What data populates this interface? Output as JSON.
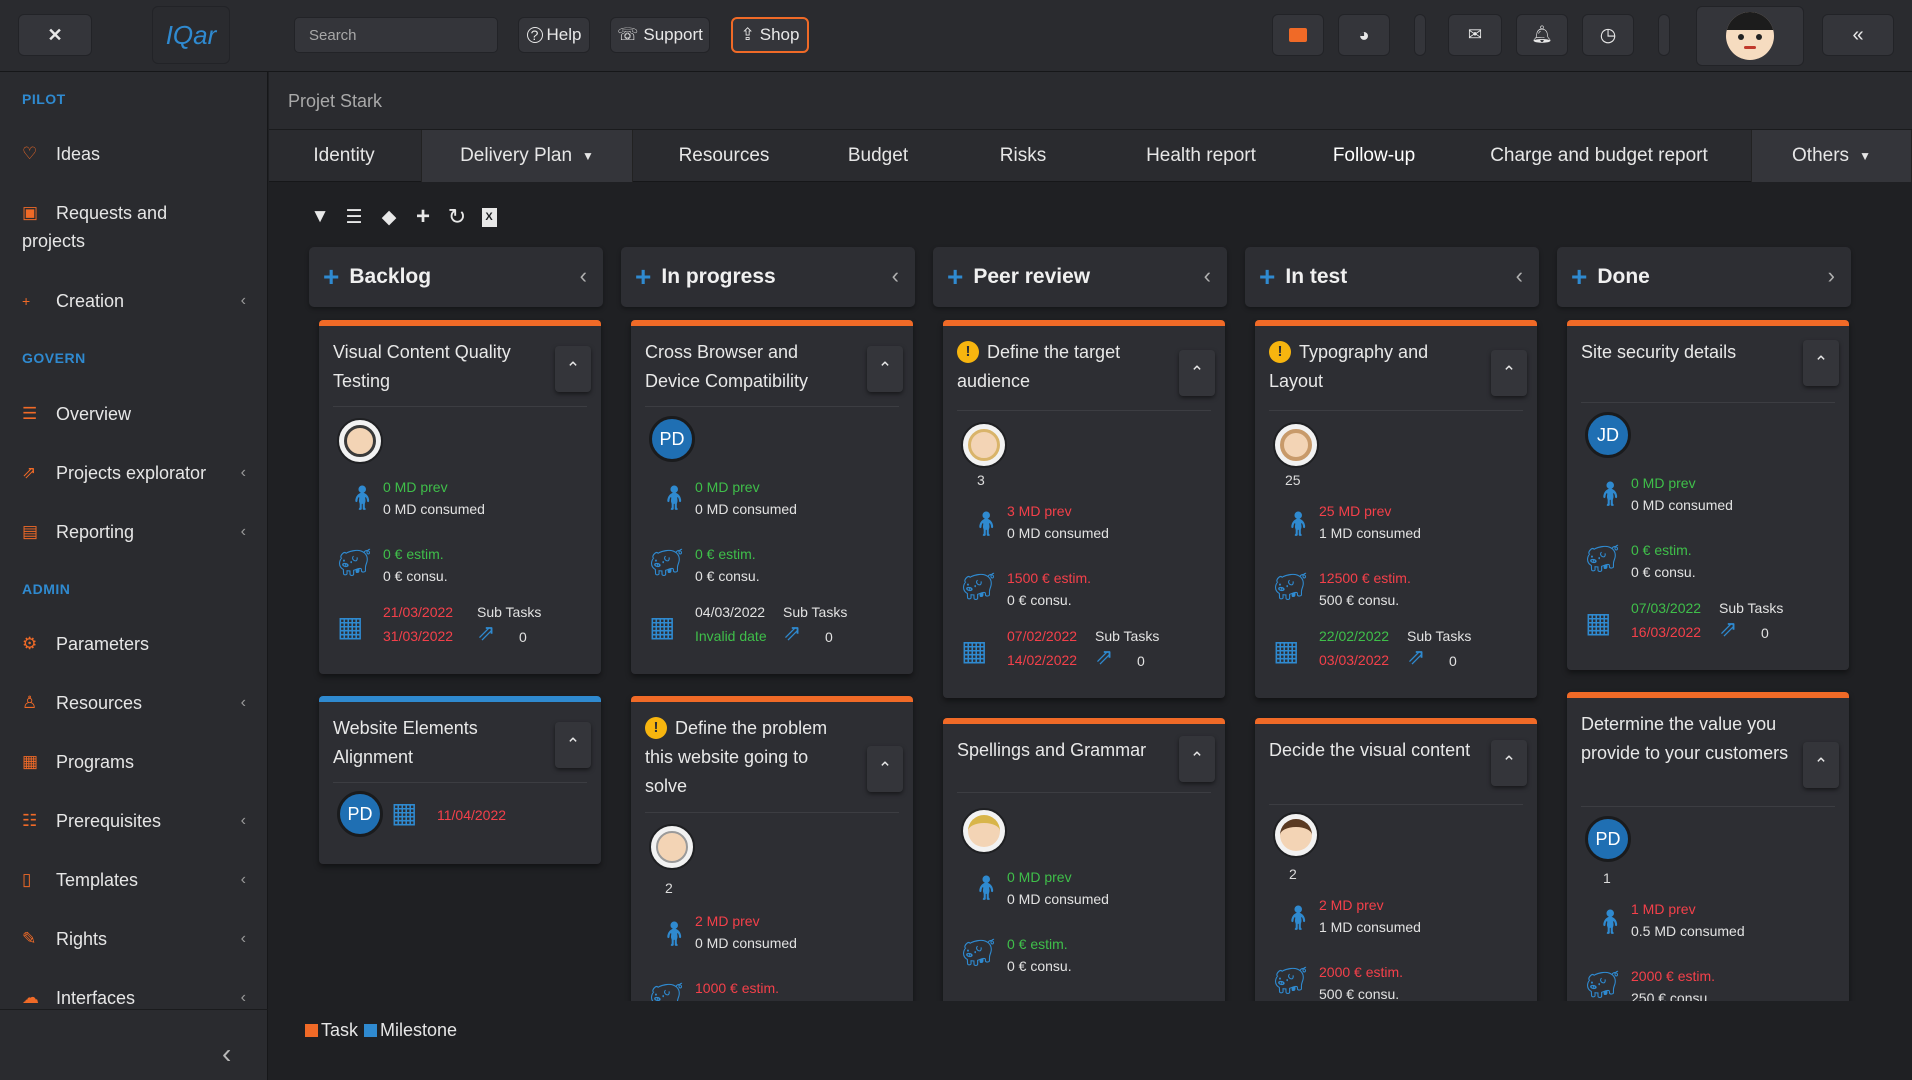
{
  "topbar": {
    "close_icon": "close-icon",
    "logo_text": "IQar",
    "search_placeholder": "Search",
    "help_label": "Help",
    "support_label": "Support",
    "shop_label": "Shop",
    "collapse_label": "«"
  },
  "sidebar": {
    "sections": {
      "pilot": "PILOT",
      "govern": "GOVERN",
      "admin": "ADMIN"
    },
    "items": [
      {
        "label": "Ideas"
      },
      {
        "label": "Requests and projects"
      },
      {
        "label": "Creation"
      },
      {
        "label": "Overview"
      },
      {
        "label": "Projects explorator"
      },
      {
        "label": "Reporting"
      },
      {
        "label": "Parameters"
      },
      {
        "label": "Resources"
      },
      {
        "label": "Programs"
      },
      {
        "label": "Prerequisites"
      },
      {
        "label": "Templates"
      },
      {
        "label": "Rights"
      },
      {
        "label": "Interfaces"
      }
    ]
  },
  "breadcrumb": "Projet Stark",
  "tabs": [
    "Identity",
    "Delivery Plan",
    "Resources",
    "Budget",
    "Risks",
    "Health report",
    "Follow-up",
    "Charge and budget report",
    "Others"
  ],
  "columns": [
    "Backlog",
    "In progress",
    "Peer review",
    "In test",
    "Done"
  ],
  "cards": {
    "c1": {
      "title": "Visual Content Quality Testing",
      "md_prev": "0 MD prev",
      "md_consumed": "0 MD consumed",
      "estim": "0 € estim.",
      "consu": "0 € consu.",
      "date_start": "21/03/2022",
      "date_end": "31/03/2022",
      "subtasks_label": "Sub Tasks",
      "subtasks": "0"
    },
    "c2": {
      "title": "Website Elements Alignment",
      "initials": "PD",
      "date": "11/04/2022"
    },
    "c3": {
      "title": "Cross Browser and Device Compatibility",
      "initials": "PD",
      "md_prev": "0 MD prev",
      "md_consumed": "0 MD consumed",
      "estim": "0 € estim.",
      "consu": "0 € consu.",
      "date_start": "04/03/2022",
      "date_end": "Invalid date",
      "subtasks_label": "Sub Tasks",
      "subtasks": "0"
    },
    "c4": {
      "title": "Define the problem this website going to solve",
      "count": "2",
      "md_prev": "2 MD prev",
      "md_consumed": "0 MD consumed",
      "estim": "1000 € estim."
    },
    "c5": {
      "title": "Define the target audience",
      "count": "3",
      "md_prev": "3 MD prev",
      "md_consumed": "0 MD consumed",
      "estim": "1500 € estim.",
      "consu": "0 € consu.",
      "date_start": "07/02/2022",
      "date_end": "14/02/2022",
      "subtasks_label": "Sub Tasks",
      "subtasks": "0"
    },
    "c6": {
      "title": "Spellings and Grammar",
      "md_prev": "0 MD prev",
      "md_consumed": "0 MD consumed",
      "estim": "0 € estim.",
      "consu": "0 € consu."
    },
    "c7": {
      "title": "Typography and Layout",
      "count": "25",
      "md_prev": "25 MD prev",
      "md_consumed": "1 MD consumed",
      "estim": "12500 € estim.",
      "consu": "500 € consu.",
      "date_start": "22/02/2022",
      "date_end": "03/03/2022",
      "subtasks_label": "Sub Tasks",
      "subtasks": "0"
    },
    "c8": {
      "title": "Decide the visual content",
      "count": "2",
      "md_prev": "2 MD prev",
      "md_consumed": "1 MD consumed",
      "estim": "2000 € estim.",
      "consu": "500 € consu."
    },
    "c9": {
      "title": "Site security details",
      "initials": "JD",
      "md_prev": "0 MD prev",
      "md_consumed": "0 MD consumed",
      "estim": "0 € estim.",
      "consu": "0 € consu.",
      "date_start": "07/03/2022",
      "date_end": "16/03/2022",
      "subtasks_label": "Sub Tasks",
      "subtasks": "0"
    },
    "c10": {
      "title": "Determine the value you provide to your customers",
      "initials": "PD",
      "count": "1",
      "md_prev": "1 MD prev",
      "md_consumed": "0.5 MD consumed",
      "estim": "2000 € estim.",
      "consu": "250 € consu."
    }
  },
  "legend": {
    "task": "Task",
    "milestone": "Milestone"
  },
  "colors": {
    "task": "#f06a27",
    "milestone": "#2f8ad0",
    "accent_blue": "#2f8ad0",
    "prev_green": "#3fbf4a",
    "overdue_red": "#f4404a"
  }
}
